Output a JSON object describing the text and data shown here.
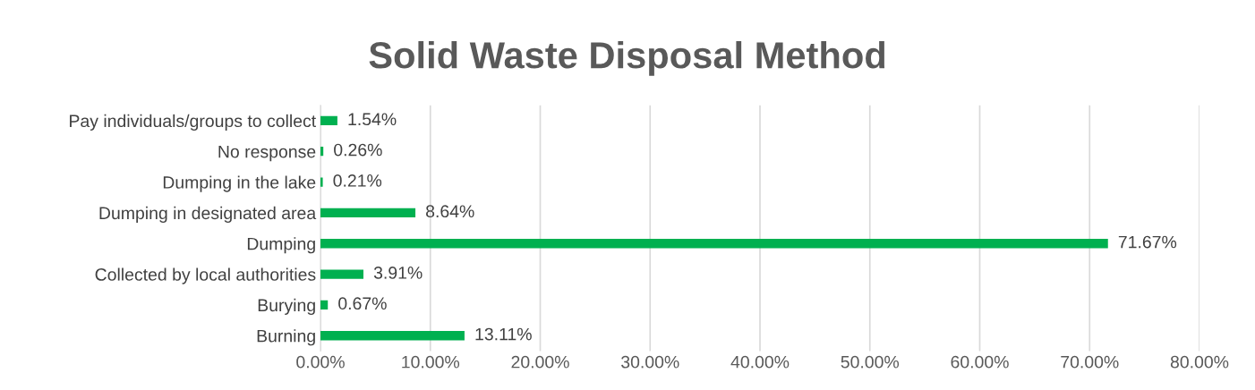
{
  "chart_data": {
    "type": "bar",
    "orientation": "horizontal",
    "title": "Solid Waste Disposal Method",
    "categories": [
      "Pay individuals/groups to collect",
      "No response",
      "Dumping in the lake",
      "Dumping in designated area",
      "Dumping",
      "Collected by local authorities",
      "Burying",
      "Burning"
    ],
    "values": [
      1.54,
      0.26,
      0.21,
      8.64,
      71.67,
      3.91,
      0.67,
      13.11
    ],
    "value_labels": [
      "1.54%",
      "0.26%",
      "0.21%",
      "8.64%",
      "71.67%",
      "3.91%",
      "0.67%",
      "13.11%"
    ],
    "color": "#00b050",
    "xlim": [
      0,
      80
    ],
    "xticks": [
      {
        "value": 0,
        "label": "0.00%"
      },
      {
        "value": 10,
        "label": "10.00%"
      },
      {
        "value": 20,
        "label": "20.00%"
      },
      {
        "value": 30,
        "label": "30.00%"
      },
      {
        "value": 40,
        "label": "40.00%"
      },
      {
        "value": 50,
        "label": "50.00%"
      },
      {
        "value": 60,
        "label": "60.00%"
      },
      {
        "value": 70,
        "label": "70.00%"
      },
      {
        "value": 80,
        "label": "80.00%"
      }
    ],
    "grid": "x",
    "legend": false
  }
}
